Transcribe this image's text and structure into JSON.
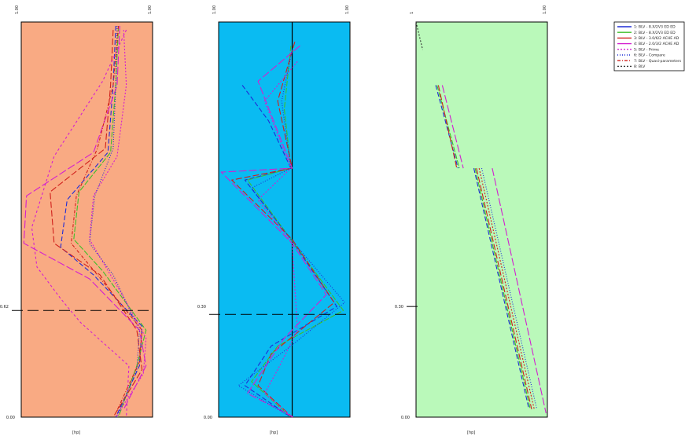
{
  "chart_data": [
    {
      "type": "line",
      "background": "#f9aa83",
      "xlim": [
        0,
        1
      ],
      "ylim": [
        0,
        1
      ],
      "tick_labels": {
        "y_top": "1.00",
        "y_mid": "0.62",
        "y_bottom": "0.00",
        "x_right": "1.00",
        "x_unit": "[hp]"
      },
      "reference_line_y": 0.27,
      "series": [
        {
          "color": "#1f2dd6",
          "dash": "6,3",
          "points": [
            [
              0.72,
              0.99
            ],
            [
              0.7,
              0.84
            ],
            [
              0.66,
              0.67
            ],
            [
              0.35,
              0.55
            ],
            [
              0.3,
              0.43
            ],
            [
              0.55,
              0.36
            ],
            [
              0.92,
              0.23
            ],
            [
              0.9,
              0.13
            ],
            [
              0.72,
              0.0
            ]
          ]
        },
        {
          "color": "#3fbf2a",
          "dash": "7,2",
          "points": [
            [
              0.74,
              0.99
            ],
            [
              0.72,
              0.84
            ],
            [
              0.68,
              0.67
            ],
            [
              0.44,
              0.57
            ],
            [
              0.4,
              0.45
            ],
            [
              0.62,
              0.37
            ],
            [
              0.95,
              0.22
            ],
            [
              0.88,
              0.13
            ],
            [
              0.74,
              0.0
            ]
          ]
        },
        {
          "color": "#d0201c",
          "dash": "8,3",
          "points": [
            [
              0.7,
              0.98
            ],
            [
              0.68,
              0.84
            ],
            [
              0.64,
              0.68
            ],
            [
              0.22,
              0.57
            ],
            [
              0.25,
              0.44
            ],
            [
              0.6,
              0.36
            ],
            [
              0.88,
              0.22
            ],
            [
              0.92,
              0.12
            ],
            [
              0.7,
              0.0
            ]
          ]
        },
        {
          "color": "#d31fd0",
          "dash": "10,3",
          "points": [
            [
              0.75,
              0.99
            ],
            [
              0.73,
              0.84
            ],
            [
              0.55,
              0.67
            ],
            [
              0.04,
              0.56
            ],
            [
              0.02,
              0.44
            ],
            [
              0.52,
              0.35
            ],
            [
              0.9,
              0.22
            ],
            [
              0.95,
              0.13
            ],
            [
              0.78,
              0.02
            ]
          ]
        },
        {
          "color": "#d31fd0",
          "dash": "2,2",
          "points": [
            [
              0.78,
              0.98
            ],
            [
              0.8,
              0.84
            ],
            [
              0.73,
              0.66
            ],
            [
              0.55,
              0.56
            ],
            [
              0.52,
              0.45
            ],
            [
              0.75,
              0.32
            ],
            [
              0.95,
              0.2
            ],
            [
              0.93,
              0.11
            ],
            [
              0.72,
              0.0
            ]
          ]
        },
        {
          "color": "#d31fd0",
          "dash": "3,3",
          "points": [
            [
              0.8,
              0.98
            ],
            [
              0.62,
              0.85
            ],
            [
              0.25,
              0.66
            ],
            [
              0.08,
              0.48
            ],
            [
              0.12,
              0.38
            ],
            [
              0.3,
              0.3
            ],
            [
              0.45,
              0.24
            ],
            [
              0.82,
              0.13
            ],
            [
              0.8,
              0.0
            ]
          ]
        },
        {
          "color": "#1f2dd6",
          "dash": "1,2",
          "points": [
            [
              0.73,
              0.99
            ],
            [
              0.72,
              0.84
            ],
            [
              0.7,
              0.68
            ],
            [
              0.56,
              0.56
            ],
            [
              0.52,
              0.44
            ],
            [
              0.7,
              0.36
            ],
            [
              0.9,
              0.22
            ],
            [
              0.88,
              0.12
            ],
            [
              0.73,
              0.0
            ]
          ]
        },
        {
          "color": "#d0201c",
          "dash": "4,2,1,2",
          "points": [
            [
              0.74,
              0.99
            ],
            [
              0.7,
              0.84
            ],
            [
              0.58,
              0.68
            ],
            [
              0.42,
              0.56
            ],
            [
              0.38,
              0.44
            ],
            [
              0.58,
              0.36
            ],
            [
              0.92,
              0.22
            ],
            [
              0.9,
              0.14
            ],
            [
              0.72,
              0.01
            ]
          ]
        }
      ]
    },
    {
      "type": "line",
      "background": "#0abbf2",
      "xlim": [
        0,
        1
      ],
      "ylim": [
        0,
        1
      ],
      "tick_labels": {
        "y_top": "1.00",
        "y_mid": "0.30",
        "y_bottom": "0.00",
        "x_right": "1.00",
        "x_unit": "[hp]"
      },
      "reference_line_y": 0.26,
      "vertical_line_x": 0.56,
      "series": [
        {
          "color": "#1f2dd6",
          "dash": "6,3",
          "points": [
            [
              0.18,
              0.84
            ],
            [
              0.38,
              0.75
            ],
            [
              0.55,
              0.63
            ],
            [
              0.2,
              0.6
            ],
            [
              0.55,
              0.45
            ],
            [
              0.9,
              0.28
            ],
            [
              0.4,
              0.18
            ],
            [
              0.2,
              0.08
            ],
            [
              0.55,
              0.0
            ]
          ]
        },
        {
          "color": "#3fbf2a",
          "dash": "7,2",
          "points": [
            [
              0.55,
              0.94
            ],
            [
              0.5,
              0.78
            ],
            [
              0.55,
              0.63
            ],
            [
              0.22,
              0.6
            ],
            [
              0.55,
              0.45
            ],
            [
              0.95,
              0.27
            ],
            [
              0.45,
              0.18
            ],
            [
              0.25,
              0.09
            ],
            [
              0.55,
              0.0
            ]
          ]
        },
        {
          "color": "#d0201c",
          "dash": "8,3",
          "points": [
            [
              0.58,
              0.95
            ],
            [
              0.45,
              0.8
            ],
            [
              0.56,
              0.63
            ],
            [
              0.1,
              0.6
            ],
            [
              0.56,
              0.45
            ],
            [
              0.88,
              0.29
            ],
            [
              0.4,
              0.16
            ],
            [
              0.3,
              0.08
            ],
            [
              0.56,
              0.0
            ]
          ]
        },
        {
          "color": "#d31fd0",
          "dash": "10,3",
          "points": [
            [
              0.62,
              0.94
            ],
            [
              0.3,
              0.85
            ],
            [
              0.56,
              0.63
            ],
            [
              0.02,
              0.62
            ],
            [
              0.56,
              0.44
            ],
            [
              0.82,
              0.31
            ],
            [
              0.5,
              0.2
            ],
            [
              0.22,
              0.06
            ],
            [
              0.57,
              0.0
            ]
          ]
        },
        {
          "color": "#d31fd0",
          "dash": "2,2",
          "points": [
            [
              0.6,
              0.9
            ],
            [
              0.35,
              0.8
            ],
            [
              0.55,
              0.63
            ],
            [
              0.3,
              0.55
            ],
            [
              0.56,
              0.44
            ],
            [
              0.6,
              0.22
            ],
            [
              0.45,
              0.12
            ],
            [
              0.35,
              0.06
            ],
            [
              0.56,
              0.0
            ]
          ]
        },
        {
          "color": "#1f2dd6",
          "dash": "1,2",
          "points": [
            [
              0.56,
              0.93
            ],
            [
              0.48,
              0.8
            ],
            [
              0.55,
              0.63
            ],
            [
              0.25,
              0.58
            ],
            [
              0.55,
              0.45
            ],
            [
              0.96,
              0.29
            ],
            [
              0.55,
              0.18
            ],
            [
              0.15,
              0.08
            ],
            [
              0.55,
              0.0
            ]
          ]
        }
      ]
    },
    {
      "type": "line",
      "background": "#baf9ba",
      "xlim": [
        0,
        1
      ],
      "ylim": [
        0,
        1
      ],
      "tick_labels": {
        "y_top": "1",
        "y_mid": "0.30",
        "y_bottom": "0.00",
        "x_right": "1.00",
        "x_unit": "[hp]"
      },
      "series": [
        {
          "color": "#1f2dd6",
          "dash": "6,3",
          "points": [
            [
              0.15,
              0.84
            ],
            [
              0.32,
              0.63
            ]
          ]
        },
        {
          "color": "#1f2dd6",
          "dash": "6,3",
          "points": [
            [
              0.44,
              0.63
            ],
            [
              0.86,
              0.02
            ]
          ]
        },
        {
          "color": "#3fbf2a",
          "dash": "7,2",
          "points": [
            [
              0.16,
              0.84
            ],
            [
              0.33,
              0.63
            ]
          ]
        },
        {
          "color": "#3fbf2a",
          "dash": "7,2",
          "points": [
            [
              0.45,
              0.63
            ],
            [
              0.87,
              0.02
            ]
          ]
        },
        {
          "color": "#d0201c",
          "dash": "8,3",
          "points": [
            [
              0.17,
              0.84
            ],
            [
              0.31,
              0.63
            ]
          ]
        },
        {
          "color": "#d0201c",
          "dash": "8,3",
          "points": [
            [
              0.46,
              0.63
            ],
            [
              0.88,
              0.02
            ]
          ]
        },
        {
          "color": "#d31fd0",
          "dash": "10,3",
          "points": [
            [
              0.2,
              0.84
            ],
            [
              0.36,
              0.63
            ]
          ]
        },
        {
          "color": "#d31fd0",
          "dash": "10,3",
          "points": [
            [
              0.58,
              0.63
            ],
            [
              0.99,
              0.01
            ]
          ]
        },
        {
          "color": "#d0201c",
          "dash": "2,2",
          "points": [
            [
              0.48,
              0.63
            ],
            [
              0.9,
              0.02
            ]
          ]
        },
        {
          "color": "#1f2dd6",
          "dash": "1,2",
          "points": [
            [
              0.5,
              0.63
            ],
            [
              0.92,
              0.02
            ]
          ]
        },
        {
          "color": "#333333",
          "dash": "2,2",
          "points": [
            [
              0.0,
              1.0
            ],
            [
              0.05,
              0.93
            ]
          ]
        }
      ]
    }
  ],
  "legend": {
    "placement": "top-right",
    "entries": [
      {
        "label": "1: BLV - 8.X/2V3 ED ED",
        "color": "#1f2dd6",
        "dash": ""
      },
      {
        "label": "2: BLV - 8.X/2V3 ED ED",
        "color": "#3fbf2a",
        "dash": ""
      },
      {
        "label": "3: BLV - 3.0/6/2 ACHE AD",
        "color": "#d0201c",
        "dash": ""
      },
      {
        "label": "4: BLV - 2.0/3/2 ACHE AD",
        "color": "#d31fd0",
        "dash": ""
      },
      {
        "label": "5: BLV - Prime",
        "color": "#d31fd0",
        "dash": "2,2"
      },
      {
        "label": "6: BLV - Compare",
        "color": "#1f2dd6",
        "dash": "1,2"
      },
      {
        "label": "7: BLV - Quasi-parameters",
        "color": "#d0201c",
        "dash": "4,2,1,2"
      },
      {
        "label": "8: BLV",
        "color": "#333333",
        "dash": "2,2"
      }
    ]
  }
}
